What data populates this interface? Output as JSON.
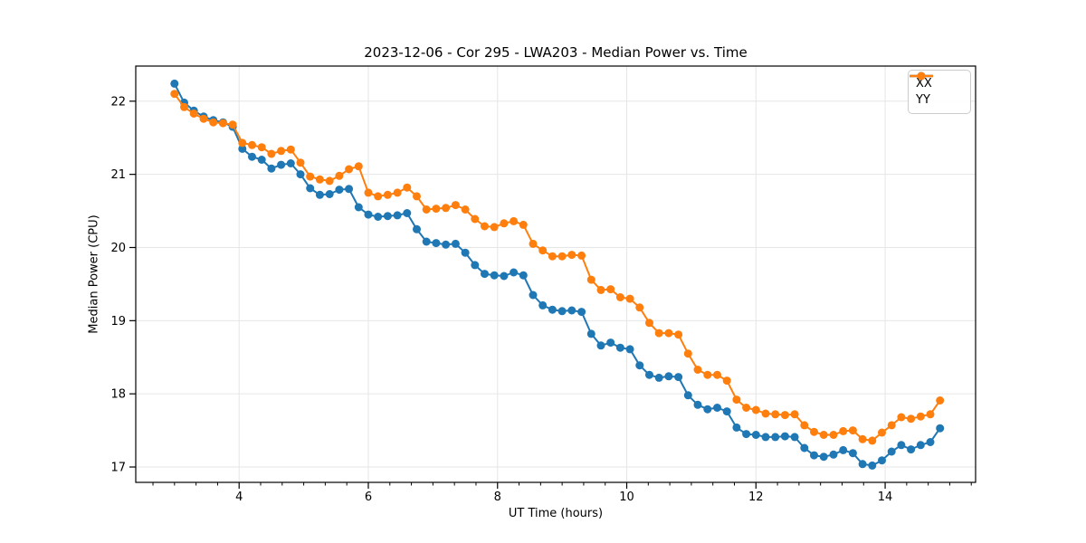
{
  "figure": {
    "title": "2023-12-06 - Cor 295 - LWA203 - Median Power vs. Time",
    "xlabel": "UT Time (hours)",
    "ylabel": "Median Power (CPU)"
  },
  "legend": {
    "position": "upper right",
    "entries": [
      {
        "label": "XX",
        "color": "#1f77b4"
      },
      {
        "label": "YY",
        "color": "#ff7f0e"
      }
    ]
  },
  "chart_data": {
    "type": "line",
    "title": "2023-12-06 - Cor 295 - LWA203 - Median Power vs. Time",
    "xlabel": "UT Time (hours)",
    "ylabel": "Median Power (CPU)",
    "xlim": [
      2.4,
      15.4
    ],
    "ylim": [
      16.79,
      22.48
    ],
    "xticks": [
      4,
      6,
      8,
      10,
      12,
      14
    ],
    "yticks": [
      17,
      18,
      19,
      20,
      21,
      22
    ],
    "x_minor_tick_step": 0.3333333,
    "grid": true,
    "legend_position": "upper right",
    "x": [
      3,
      3.15,
      3.3,
      3.45,
      3.6,
      3.75,
      3.9,
      4.05,
      4.2,
      4.35,
      4.5,
      4.65,
      4.8,
      4.95,
      5.1,
      5.25,
      5.4,
      5.55,
      5.7,
      5.85,
      6,
      6.15,
      6.3,
      6.45,
      6.6,
      6.75,
      6.9,
      7.05,
      7.2,
      7.35,
      7.5,
      7.65,
      7.8,
      7.95,
      8.1,
      8.25,
      8.4,
      8.55,
      8.7,
      8.85,
      9,
      9.15,
      9.3,
      9.45,
      9.6,
      9.75,
      9.9,
      10.05,
      10.2,
      10.35,
      10.5,
      10.65,
      10.8,
      10.95,
      11.1,
      11.25,
      11.4,
      11.55,
      11.7,
      11.85,
      12,
      12.15,
      12.3,
      12.45,
      12.6,
      12.75,
      12.9,
      13.05,
      13.2,
      13.35,
      13.5,
      13.65,
      13.8,
      13.95,
      14.1,
      14.25,
      14.4,
      14.55,
      14.7,
      14.85
    ],
    "series": [
      {
        "name": "XX",
        "color": "#1f77b4",
        "values": [
          22.24,
          21.98,
          21.87,
          21.79,
          21.74,
          21.71,
          21.65,
          21.35,
          21.24,
          21.2,
          21.08,
          21.13,
          21.15,
          21.0,
          20.81,
          20.72,
          20.73,
          20.79,
          20.8,
          20.55,
          20.45,
          20.42,
          20.43,
          20.44,
          20.47,
          20.25,
          20.08,
          20.06,
          20.04,
          20.05,
          19.93,
          19.76,
          19.64,
          19.62,
          19.61,
          19.66,
          19.62,
          19.35,
          19.21,
          19.15,
          19.13,
          19.14,
          19.12,
          18.82,
          18.66,
          18.7,
          18.63,
          18.61,
          18.39,
          18.26,
          18.22,
          18.24,
          18.23,
          17.98,
          17.85,
          17.79,
          17.81,
          17.76,
          17.54,
          17.45,
          17.44,
          17.41,
          17.41,
          17.42,
          17.41,
          17.26,
          17.16,
          17.14,
          17.17,
          17.23,
          17.19,
          17.04,
          17.02,
          17.09,
          17.21,
          17.3,
          17.24,
          17.3,
          17.34,
          17.53
        ]
      },
      {
        "name": "YY",
        "color": "#ff7f0e",
        "values": [
          22.1,
          21.92,
          21.83,
          21.76,
          21.71,
          21.7,
          21.68,
          21.43,
          21.4,
          21.37,
          21.28,
          21.32,
          21.34,
          21.16,
          20.97,
          20.93,
          20.91,
          20.98,
          21.07,
          21.11,
          20.75,
          20.7,
          20.72,
          20.75,
          20.82,
          20.7,
          20.52,
          20.53,
          20.54,
          20.58,
          20.52,
          20.39,
          20.29,
          20.28,
          20.33,
          20.36,
          20.31,
          20.05,
          19.96,
          19.88,
          19.88,
          19.9,
          19.89,
          19.56,
          19.42,
          19.43,
          19.32,
          19.3,
          19.18,
          18.97,
          18.83,
          18.83,
          18.81,
          18.55,
          18.33,
          18.26,
          18.26,
          18.18,
          17.92,
          17.81,
          17.78,
          17.73,
          17.72,
          17.71,
          17.72,
          17.57,
          17.48,
          17.44,
          17.44,
          17.49,
          17.5,
          17.38,
          17.36,
          17.47,
          17.57,
          17.68,
          17.66,
          17.69,
          17.72,
          17.91
        ]
      }
    ],
    "style": {
      "grid_color": "#e6e6e6",
      "spine_color": "#000000",
      "tick_color": "#000000",
      "marker_radius": 4.5,
      "line_width": 2
    }
  }
}
